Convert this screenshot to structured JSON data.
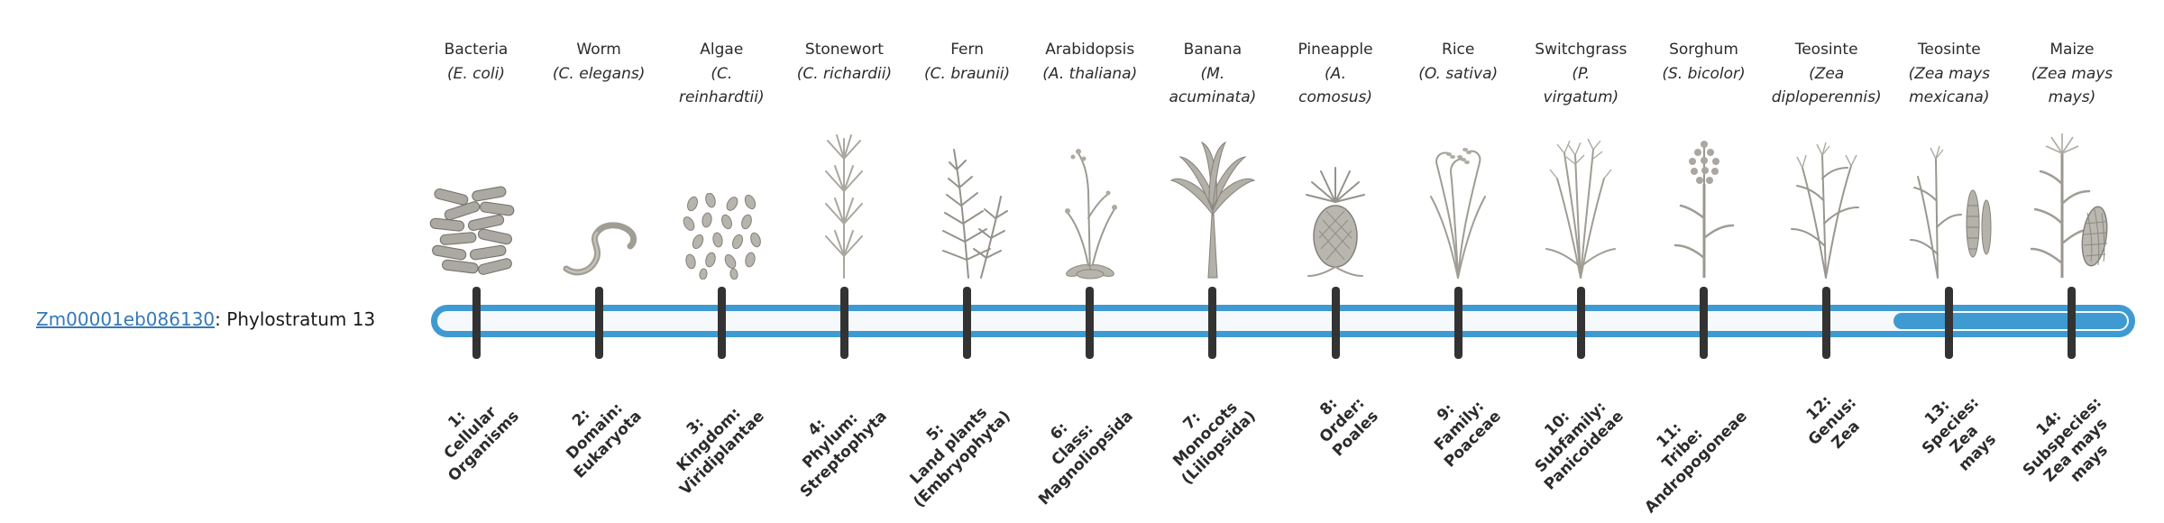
{
  "gene": {
    "id": "Zm00001eb086130",
    "title_suffix": ": Phylostratum 13",
    "phylostratum": 13,
    "link_color": "#3579b8"
  },
  "timeline": {
    "bar_color": "#3f9ad2",
    "track_color": "#f6f9fb",
    "tick_color": "#333333",
    "highlighted_stages": [
      13,
      14
    ]
  },
  "stages": [
    {
      "number": 1,
      "organism": "Bacteria",
      "scientific_lines": [
        "(E. coli)"
      ],
      "icon": "bacteria-illustration",
      "rank_label_lines": [
        "1:",
        "Cellular",
        "Organisms"
      ],
      "highlighted": false
    },
    {
      "number": 2,
      "organism": "Worm",
      "scientific_lines": [
        "(C. elegans)"
      ],
      "icon": "worm-illustration",
      "rank_label_lines": [
        "2:",
        "Domain:",
        "Eukaryota"
      ],
      "highlighted": false
    },
    {
      "number": 3,
      "organism": "Algae",
      "scientific_lines": [
        "(C.",
        "reinhardtii)"
      ],
      "icon": "algae-illustration",
      "rank_label_lines": [
        "3:",
        "Kingdom:",
        "Viridiplantae"
      ],
      "highlighted": false
    },
    {
      "number": 4,
      "organism": "Stonewort",
      "scientific_lines": [
        "(C. richardii)"
      ],
      "icon": "stonewort-illustration",
      "rank_label_lines": [
        "4:",
        "Phylum:",
        "Streptophyta"
      ],
      "highlighted": false
    },
    {
      "number": 5,
      "organism": "Fern",
      "scientific_lines": [
        "(C. braunii)"
      ],
      "icon": "fern-illustration",
      "rank_label_lines": [
        "5:",
        "Land plants",
        "(Embryophyta)"
      ],
      "highlighted": false
    },
    {
      "number": 6,
      "organism": "Arabidopsis",
      "scientific_lines": [
        "(A. thaliana)"
      ],
      "icon": "arabidopsis-illustration",
      "rank_label_lines": [
        "6:",
        "Class:",
        "Magnoliopsida"
      ],
      "highlighted": false
    },
    {
      "number": 7,
      "organism": "Banana",
      "scientific_lines": [
        "(M.",
        "acuminata)"
      ],
      "icon": "banana-illustration",
      "rank_label_lines": [
        "7:",
        "Monocots",
        "(Liliopsida)"
      ],
      "highlighted": false
    },
    {
      "number": 8,
      "organism": "Pineapple",
      "scientific_lines": [
        "(A.",
        "comosus)"
      ],
      "icon": "pineapple-illustration",
      "rank_label_lines": [
        "8:",
        "Order:",
        "Poales"
      ],
      "highlighted": false
    },
    {
      "number": 9,
      "organism": "Rice",
      "scientific_lines": [
        "(O. sativa)"
      ],
      "icon": "rice-illustration",
      "rank_label_lines": [
        "9:",
        "Family:",
        "Poaceae"
      ],
      "highlighted": false
    },
    {
      "number": 10,
      "organism": "Switchgrass",
      "scientific_lines": [
        "(P.",
        "virgatum)"
      ],
      "icon": "switchgrass-illustration",
      "rank_label_lines": [
        "10:",
        "Subfamily:",
        "Panicoideae"
      ],
      "highlighted": false
    },
    {
      "number": 11,
      "organism": "Sorghum",
      "scientific_lines": [
        "(S. bicolor)"
      ],
      "icon": "sorghum-illustration",
      "rank_label_lines": [
        "11:",
        "Tribe:",
        "Andropogoneae"
      ],
      "highlighted": false
    },
    {
      "number": 12,
      "organism": "Teosinte",
      "scientific_lines": [
        "(Zea",
        "diploperennis)"
      ],
      "icon": "teosinte-diploperennis-illustration",
      "rank_label_lines": [
        "12:",
        "Genus:",
        "Zea"
      ],
      "highlighted": false
    },
    {
      "number": 13,
      "organism": "Teosinte",
      "scientific_lines": [
        "(Zea mays",
        "mexicana)"
      ],
      "icon": "teosinte-mexicana-illustration",
      "rank_label_lines": [
        "13:",
        "Species:",
        "Zea",
        "mays"
      ],
      "highlighted": true
    },
    {
      "number": 14,
      "organism": "Maize",
      "scientific_lines": [
        "(Zea mays",
        "mays)"
      ],
      "icon": "maize-illustration",
      "rank_label_lines": [
        "14:",
        "Subspecies:",
        "Zea mays",
        "mays"
      ],
      "highlighted": true
    }
  ]
}
